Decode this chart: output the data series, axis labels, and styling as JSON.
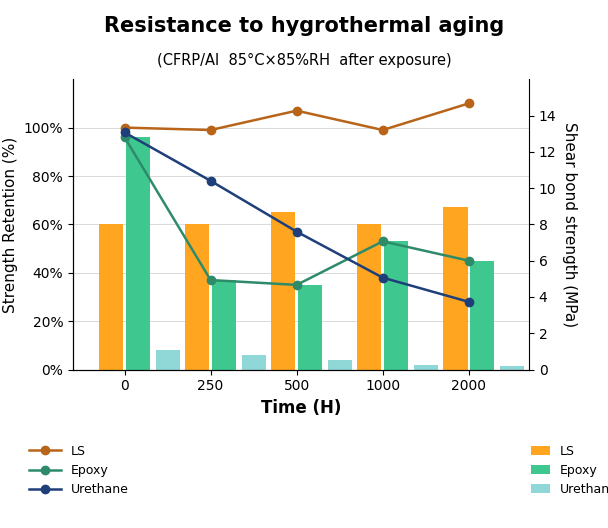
{
  "title": "Resistance to hygrothermal aging",
  "subtitle": "(CFRP/AI  85°C×85%RH  after exposure)",
  "xlabel": "Time (H)",
  "ylabel_left": "Strength Retention (%)",
  "ylabel_right": "Shear bond strength (MPa)",
  "time_points": [
    0,
    250,
    500,
    1000,
    2000
  ],
  "ls_line": [
    100,
    99,
    107,
    99,
    110
  ],
  "epoxy_line": [
    96,
    37,
    35,
    53,
    45
  ],
  "urethane_line": [
    98,
    78,
    57,
    38,
    28
  ],
  "ls_bars": [
    60,
    60,
    65,
    60,
    67
  ],
  "epoxy_bars": [
    96,
    37,
    35,
    53,
    45
  ],
  "urethane_bars": [
    8,
    6,
    4,
    2,
    1.5
  ],
  "ls_line_color": "#B8651A",
  "epoxy_line_color": "#2E8B6A",
  "urethane_line_color": "#1E3F7A",
  "ls_bar_color": "#FFA520",
  "epoxy_bar_color": "#3EC890",
  "urethane_bar_color": "#90D8D8",
  "ylim_left": [
    0,
    120
  ],
  "ylim_right": [
    0,
    16
  ],
  "yticks_left": [
    0,
    20,
    40,
    60,
    80,
    100
  ],
  "ytick_labels_left": [
    "0%",
    "20%",
    "40%",
    "60%",
    "80%",
    "100%"
  ],
  "yticks_right": [
    0,
    2,
    4,
    6,
    8,
    10,
    12,
    14
  ],
  "bar_width": 0.28,
  "figsize": [
    6.08,
    5.28
  ],
  "dpi": 100
}
